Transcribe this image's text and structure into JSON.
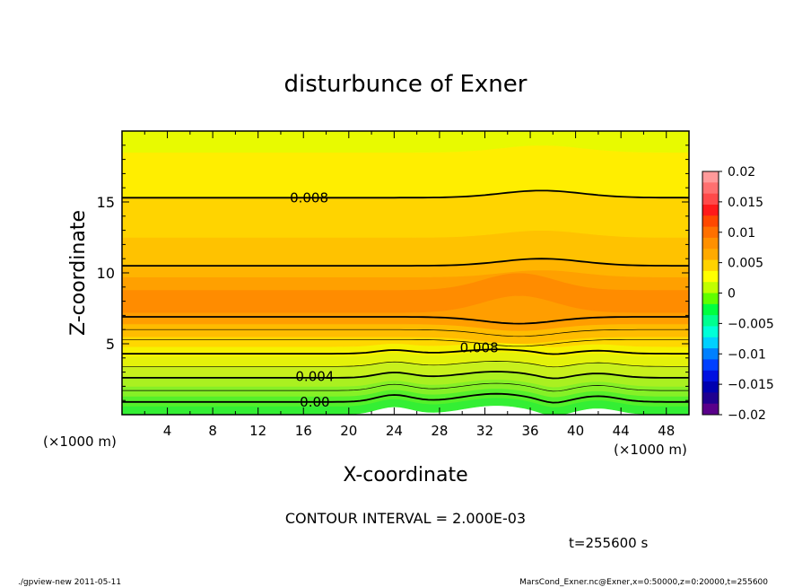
{
  "chart_data": {
    "type": "contour",
    "title": "disturbunce of Exner",
    "xlabel": "X-coordinate",
    "ylabel": "Z-coordinate",
    "x_unit_left": "(×1000 m)",
    "x_unit_right": "(×1000 m)",
    "xlim": [
      0,
      50
    ],
    "ylim": [
      0,
      20
    ],
    "xticks": [
      4,
      8,
      12,
      16,
      20,
      24,
      28,
      32,
      36,
      40,
      44,
      48
    ],
    "yticks": [
      5,
      10,
      15
    ],
    "contour_interval_text": "CONTOUR INTERVAL = 2.000E-03",
    "time_text": "t=255600 s",
    "contour_labels": [
      {
        "text": "0.008",
        "x": 16.5,
        "z": 15.3
      },
      {
        "text": "0.008",
        "x": 31.5,
        "z": 4.7
      },
      {
        "text": "0.004",
        "x": 17,
        "z": 2.7
      },
      {
        "text": "0.00",
        "x": 17,
        "z": 0.9
      }
    ],
    "colorbar": {
      "ticks": [
        "0.02",
        "0.015",
        "0.01",
        "0.005",
        "0",
        "−0.005",
        "−0.01",
        "−0.015",
        "−0.02"
      ],
      "colors": [
        "#ff9a9a",
        "#ff7070",
        "#ff4a4a",
        "#ff1a1a",
        "#ff4800",
        "#ff7000",
        "#ff9000",
        "#ffaa00",
        "#ffd200",
        "#ffff00",
        "#c0ff00",
        "#60ff00",
        "#00ff40",
        "#00ff90",
        "#00ffd8",
        "#00d0ff",
        "#0080ff",
        "#0040ff",
        "#0010e0",
        "#0000b0",
        "#200090",
        "#5a008a"
      ]
    },
    "bands": [
      {
        "z0": 0,
        "z1": 0.6,
        "color": "#34ef34"
      },
      {
        "z0": 0.6,
        "z1": 1.3,
        "color": "#55f02a"
      },
      {
        "z0": 1.3,
        "z1": 2.0,
        "color": "#86f026"
      },
      {
        "z0": 2.0,
        "z1": 2.7,
        "color": "#aaf020"
      },
      {
        "z0": 2.7,
        "z1": 3.4,
        "color": "#c8f01c"
      },
      {
        "z0": 3.4,
        "z1": 4.1,
        "color": "#e4f20a"
      },
      {
        "z0": 4.1,
        "z1": 4.8,
        "color": "#f6f200"
      },
      {
        "z0": 4.8,
        "z1": 5.5,
        "color": "#ffd700"
      },
      {
        "z0": 5.5,
        "z1": 6.4,
        "color": "#ffbc00"
      },
      {
        "z0": 6.4,
        "z1": 7.2,
        "color": "#ff9e00"
      },
      {
        "z0": 7.2,
        "z1": 8.8,
        "color": "#ff8c00"
      },
      {
        "z0": 8.8,
        "z1": 9.7,
        "color": "#ffa000"
      },
      {
        "z0": 9.7,
        "z1": 10.5,
        "color": "#ffb400"
      },
      {
        "z0": 10.5,
        "z1": 12.5,
        "color": "#ffc200"
      },
      {
        "z0": 12.5,
        "z1": 15.3,
        "color": "#ffd400"
      },
      {
        "z0": 15.3,
        "z1": 18.5,
        "color": "#ffee00"
      },
      {
        "z0": 18.5,
        "z1": 20,
        "color": "#e8fa00"
      }
    ],
    "thick_contours_z": [
      0.9,
      2.6,
      4.3,
      6.9,
      10.5,
      15.3
    ],
    "thin_contours_z": [
      1.7,
      3.4,
      5.3,
      6.0
    ]
  },
  "footer": {
    "left": "./gpview-new   2011-05-11",
    "right": "MarsCond_Exner.nc@Exner,x=0:50000,z=0:20000,t=255600"
  }
}
